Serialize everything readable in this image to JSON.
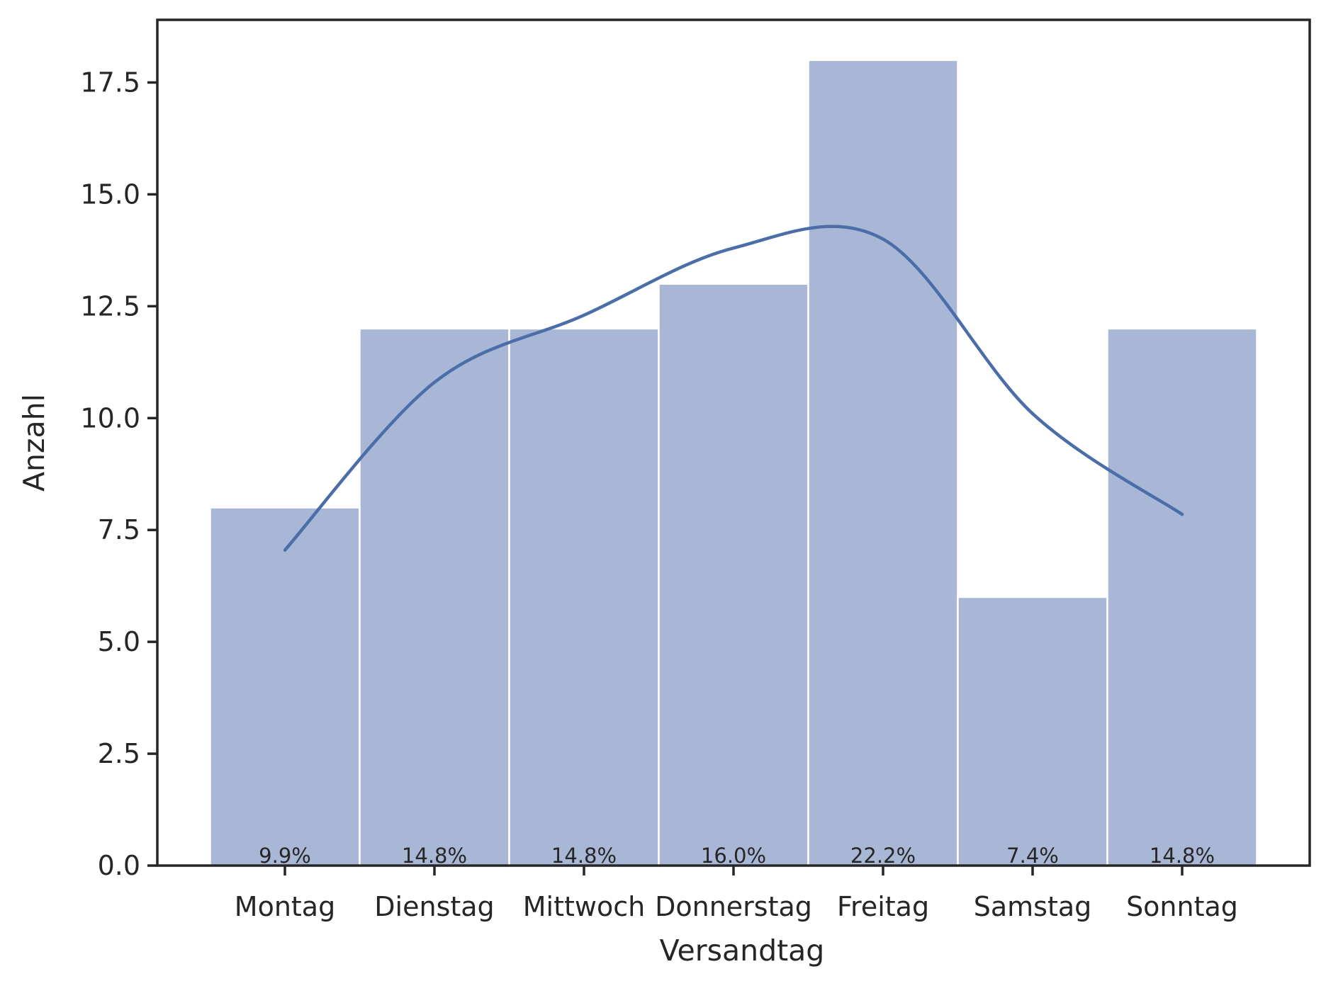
{
  "chart_data": {
    "type": "bar",
    "categories": [
      "Montag",
      "Dienstag",
      "Mittwoch",
      "Donnerstag",
      "Freitag",
      "Samstag",
      "Sonntag"
    ],
    "values": [
      8,
      12,
      12,
      13,
      18,
      6,
      12
    ],
    "percent_labels": [
      "9.9%",
      "14.8%",
      "14.8%",
      "16.0%",
      "22.2%",
      "7.4%",
      "14.8%"
    ],
    "kde": [
      7.05,
      10.8,
      12.3,
      13.8,
      14.0,
      10.1,
      7.85
    ],
    "xlabel": "Versandtag",
    "ylabel": "Anzahl",
    "ylim": [
      0,
      18.9
    ],
    "yticks": [
      "0.0",
      "2.5",
      "5.0",
      "7.5",
      "10.0",
      "12.5",
      "15.0",
      "17.5"
    ],
    "grid": false,
    "colors": {
      "bar": "#a8b7d5",
      "bar_edge": "#ffffff",
      "kde_line": "#4c6ea8",
      "axis": "#262626",
      "text": "#262626"
    }
  }
}
